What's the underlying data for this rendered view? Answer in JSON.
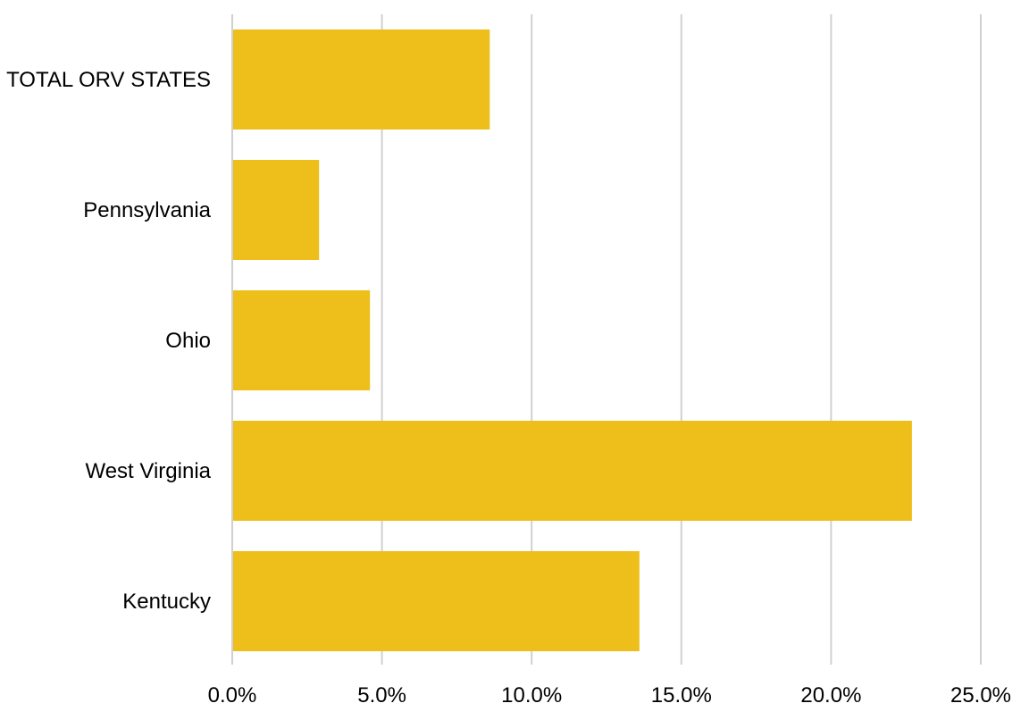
{
  "chart_data": {
    "type": "bar",
    "orientation": "horizontal",
    "categories": [
      "TOTAL ORV STATES",
      "Pennsylvania",
      "Ohio",
      "West Virginia",
      "Kentucky"
    ],
    "values": [
      8.6,
      2.9,
      4.6,
      22.7,
      13.6
    ],
    "value_unit": "%",
    "xlim": [
      0,
      25
    ],
    "xticks": [
      0,
      5,
      10,
      15,
      20,
      25
    ],
    "xtick_labels": [
      "0.0%",
      "5.0%",
      "10.0%",
      "15.0%",
      "20.0%",
      "25.0%"
    ],
    "title": "",
    "xlabel": "",
    "ylabel": "",
    "grid": "vertical",
    "legend": "none",
    "bar_color": "#EEBF1B"
  }
}
